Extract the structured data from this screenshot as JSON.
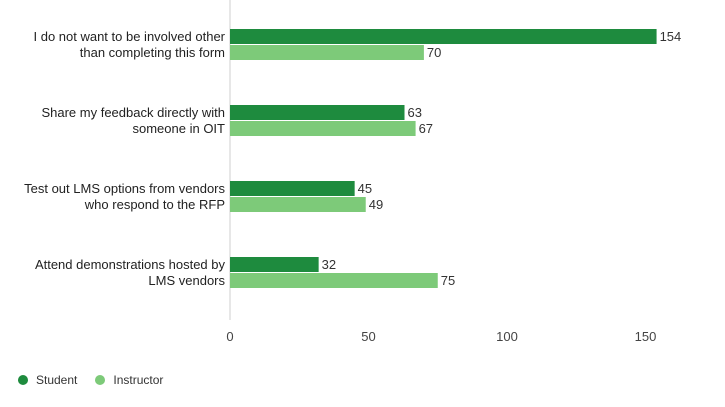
{
  "chart_data": {
    "type": "bar",
    "orientation": "horizontal",
    "categories": [
      "I do not want to be involved other\nthan completing this form",
      "Share my feedback directly with\nsomeone in OIT",
      "Test out LMS options from vendors\nwho respond to the RFP",
      "Attend demonstrations hosted by\nLMS vendors"
    ],
    "series": [
      {
        "name": "Student",
        "values": [
          154,
          63,
          45,
          32
        ],
        "color": "#1e8b3e"
      },
      {
        "name": "Instructor",
        "values": [
          70,
          67,
          49,
          75
        ],
        "color": "#7dca79"
      }
    ],
    "xlim": [
      0,
      165
    ],
    "xticks": [
      0,
      50,
      100,
      150
    ],
    "grid": false,
    "legend": "bottom-left",
    "title": "",
    "xlabel": "",
    "ylabel": ""
  }
}
